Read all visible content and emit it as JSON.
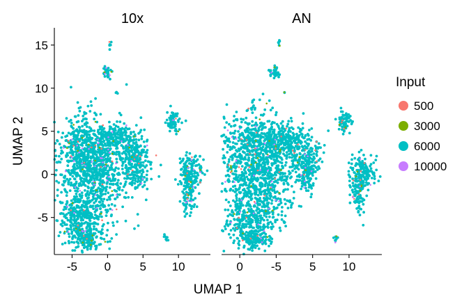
{
  "chart_data": {
    "type": "scatter",
    "facets": [
      "10x",
      "AN"
    ],
    "xlabel": "UMAP 1",
    "ylabel": "UMAP 2",
    "xlim": [
      -7.5,
      14.5
    ],
    "ylim": [
      -9.3,
      17.0
    ],
    "y_ticks": [
      15,
      10,
      5,
      0,
      -5
    ],
    "x_ticks": {
      "10x": [
        -5,
        0,
        5,
        10
      ],
      "AN": [
        0,
        -5,
        5,
        10
      ]
    },
    "legend": {
      "title": "Input",
      "position": "right",
      "entries": [
        {
          "label": "500",
          "color": "#F8766D"
        },
        {
          "label": "3000",
          "color": "#7CAE00"
        },
        {
          "label": "6000",
          "color": "#00BFC4"
        },
        {
          "label": "10000",
          "color": "#C77CFF"
        }
      ]
    },
    "dominant_series": "6000",
    "clusters": [
      {
        "cx": -3.2,
        "cy": 1.5,
        "sx": 2.2,
        "sy": 2.8,
        "n": 700
      },
      {
        "cx": -3.5,
        "cy": -5.0,
        "sx": 1.8,
        "sy": 1.6,
        "n": 350
      },
      {
        "cx": -3.0,
        "cy": -7.5,
        "sx": 1.2,
        "sy": 0.6,
        "n": 120
      },
      {
        "cx": -1.0,
        "cy": 3.5,
        "sx": 2.5,
        "sy": 1.4,
        "n": 250
      },
      {
        "cx": 1.5,
        "cy": 4.4,
        "sx": 1.5,
        "sy": 0.7,
        "n": 140
      },
      {
        "cx": 4.0,
        "cy": 2.2,
        "sx": 1.2,
        "sy": 1.0,
        "n": 140
      },
      {
        "cx": 4.2,
        "cy": 0.0,
        "sx": 0.8,
        "sy": 0.9,
        "n": 120
      },
      {
        "cx": -0.5,
        "cy": -1.0,
        "sx": 1.8,
        "sy": 2.2,
        "n": 200
      },
      {
        "cx": 11.8,
        "cy": 0.3,
        "sx": 0.8,
        "sy": 0.9,
        "n": 160
      },
      {
        "cx": 11.3,
        "cy": -2.3,
        "sx": 0.5,
        "sy": 1.1,
        "n": 90
      },
      {
        "cx": 9.3,
        "cy": 6.2,
        "sx": 0.5,
        "sy": 0.6,
        "n": 70
      },
      {
        "cx": -0.1,
        "cy": 11.8,
        "sx": 0.35,
        "sy": 0.35,
        "n": 35
      },
      {
        "cx": 0.35,
        "cy": 15.1,
        "sx": 0.08,
        "sy": 0.25,
        "n": 6
      },
      {
        "cx": 1.2,
        "cy": 9.5,
        "sx": 0.1,
        "sy": 0.1,
        "n": 3
      },
      {
        "cx": 8.2,
        "cy": -7.4,
        "sx": 0.15,
        "sy": 0.25,
        "n": 8
      }
    ],
    "minority_share": 0.06,
    "grid": false
  }
}
